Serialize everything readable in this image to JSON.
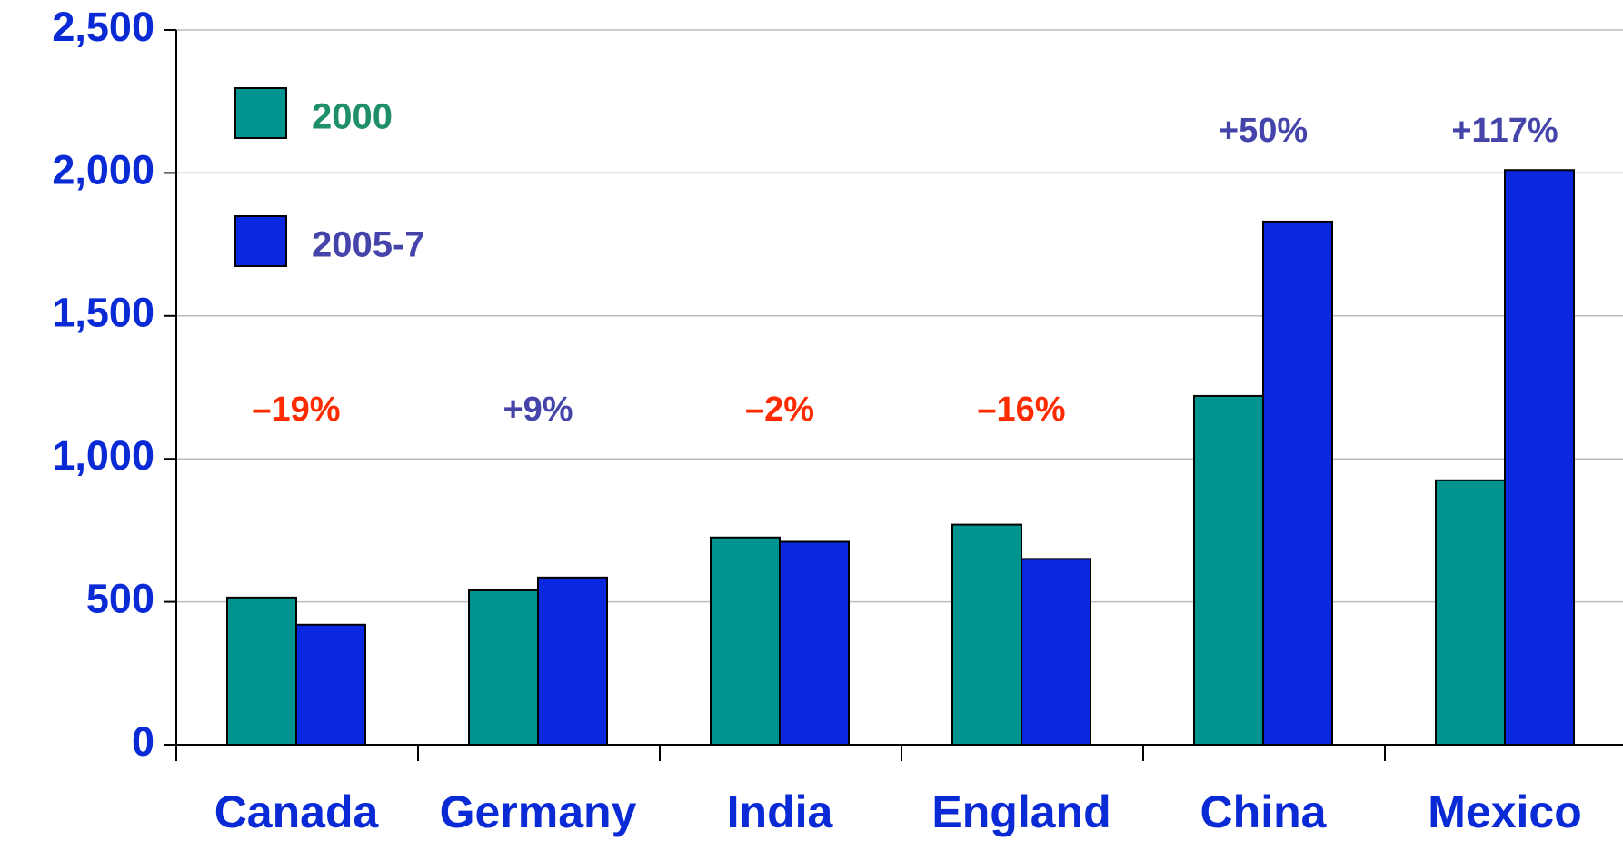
{
  "chart_data": {
    "type": "bar",
    "categories": [
      "Canada",
      "Germany",
      "India",
      "England",
      "China",
      "Mexico"
    ],
    "series": [
      {
        "name": "2000",
        "color": "#009490",
        "values": [
          515,
          540,
          725,
          770,
          1220,
          925
        ]
      },
      {
        "name": "2005-7",
        "color": "#0a28e0",
        "values": [
          420,
          585,
          710,
          650,
          1830,
          2010
        ]
      }
    ],
    "annotations": [
      {
        "text": "–19%",
        "color": "#ff2a00"
      },
      {
        "text": "+9%",
        "color": "#4444aa"
      },
      {
        "text": "–2%",
        "color": "#ff2a00"
      },
      {
        "text": "–16%",
        "color": "#ff2a00"
      },
      {
        "text": "+50%",
        "color": "#4444aa"
      },
      {
        "text": "+117%",
        "color": "#4444aa"
      }
    ],
    "ylim": [
      0,
      2500
    ],
    "yticks": [
      0,
      {
        "value": 500,
        "label": "500"
      },
      {
        "value": 1000,
        "label": "1,000"
      },
      {
        "value": 1500,
        "label": "1,500"
      },
      {
        "value": 2000,
        "label": "2,000"
      },
      {
        "value": 2500,
        "label": "2,500"
      }
    ],
    "grid": true
  }
}
